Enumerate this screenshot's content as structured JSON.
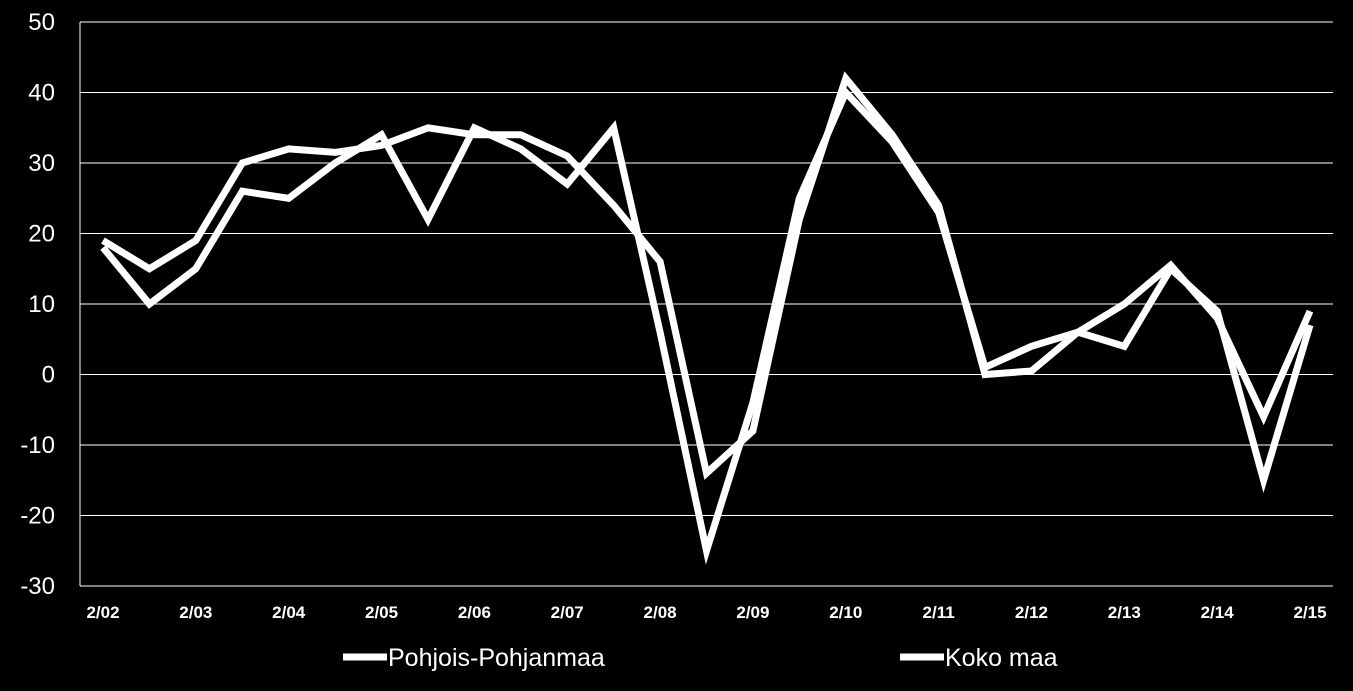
{
  "chart_data": {
    "type": "line",
    "title": "",
    "xlabel": "",
    "ylabel": "",
    "ylim": [
      -30,
      50
    ],
    "yticks": [
      "-30",
      "-20",
      "-10",
      "0",
      "10",
      "20",
      "30",
      "40",
      "50"
    ],
    "xtick_labels": [
      "2/02",
      "2/03",
      "2/04",
      "2/05",
      "2/06",
      "2/07",
      "2/08",
      "2/09",
      "2/10",
      "2/11",
      "2/12",
      "2/13",
      "2/14",
      "2/15"
    ],
    "grid": true,
    "legend_position": "bottom",
    "series": [
      {
        "name": "Pohjois-Pohjanmaa",
        "color": "#ffffff",
        "values": [
          18,
          10,
          15,
          26,
          25,
          30,
          34,
          22,
          35,
          32,
          27,
          35,
          6,
          -25,
          -4,
          25,
          40,
          33,
          23,
          1,
          4,
          6,
          4,
          15,
          9,
          -15,
          7
        ]
      },
      {
        "name": "Koko maa",
        "color": "#ffffff",
        "values": [
          19,
          15,
          19,
          30,
          32,
          31.5,
          32.5,
          35,
          34,
          34,
          31,
          24,
          16,
          -14,
          -8,
          22,
          42,
          34,
          24,
          0,
          0.5,
          6,
          10,
          15.5,
          8,
          -6,
          9
        ]
      }
    ]
  }
}
